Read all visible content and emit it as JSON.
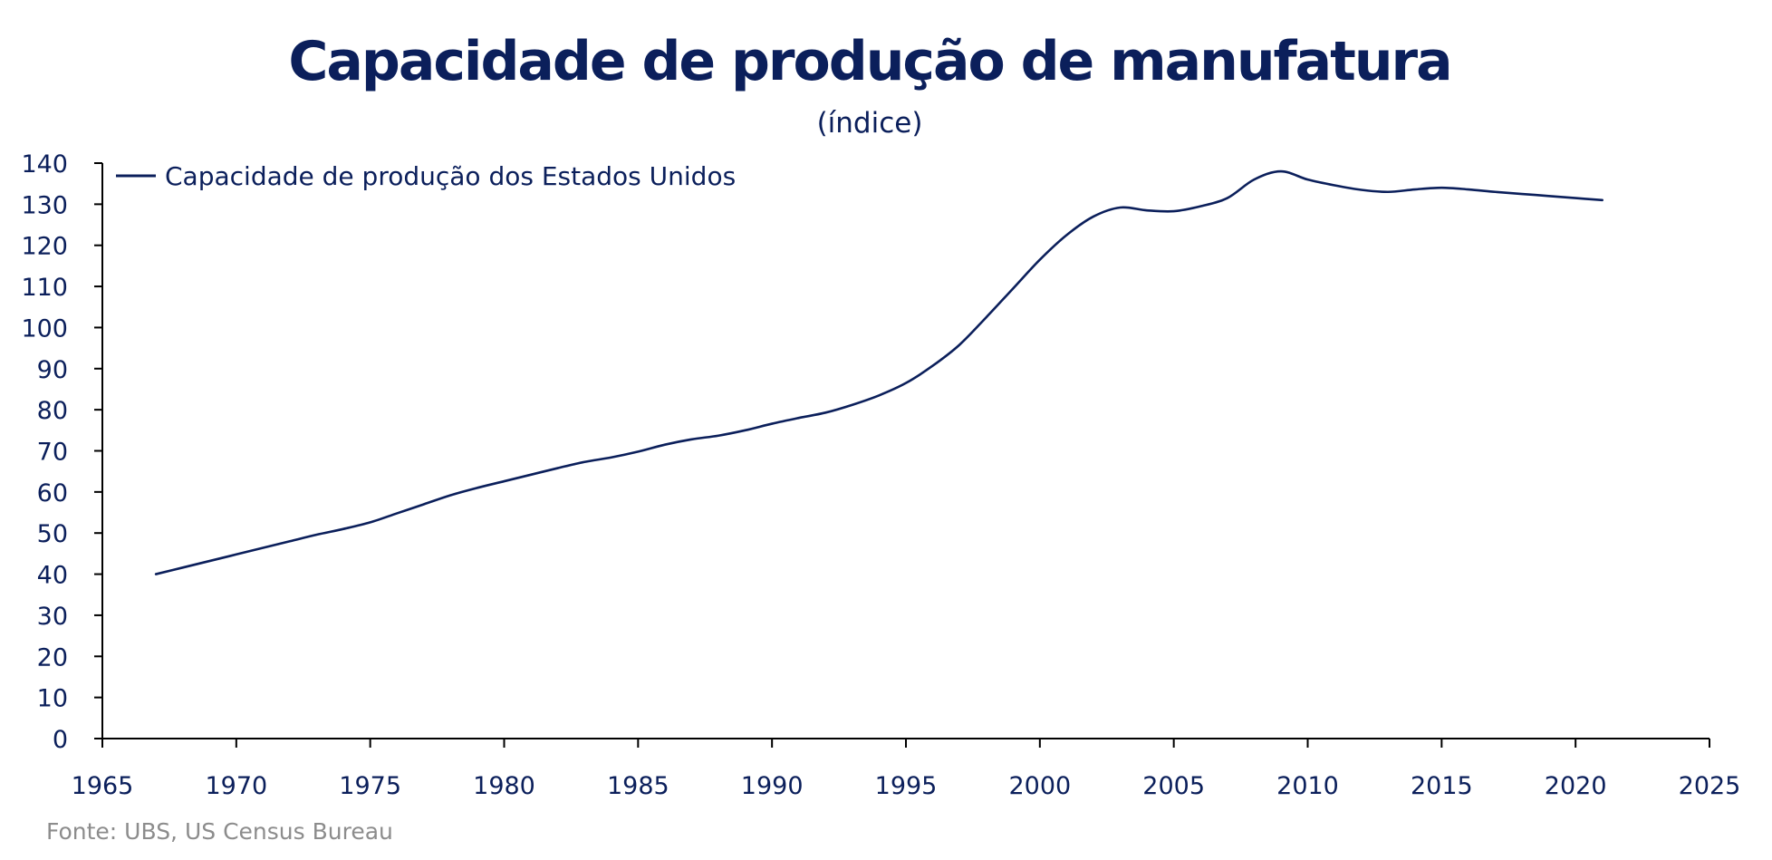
{
  "colors": {
    "primary": "#0b1f5b",
    "source": "#8c8c8c",
    "background": "#ffffff"
  },
  "chart_data": {
    "type": "line",
    "title": "Capacidade de produção de manufatura",
    "subtitle": "(índice)",
    "xlabel": "",
    "ylabel": "",
    "xlim": [
      1965,
      2025
    ],
    "ylim": [
      0,
      140
    ],
    "x_ticks": [
      1965,
      1970,
      1975,
      1980,
      1985,
      1990,
      1995,
      2000,
      2005,
      2010,
      2015,
      2020,
      2025
    ],
    "y_ticks": [
      0,
      10,
      20,
      30,
      40,
      50,
      60,
      70,
      80,
      90,
      100,
      110,
      120,
      130,
      140
    ],
    "grid": false,
    "legend_position": "top-left",
    "series": [
      {
        "name": "Capacidade de produção dos Estados Unidos",
        "x": [
          1967,
          1968,
          1969,
          1970,
          1971,
          1972,
          1973,
          1974,
          1975,
          1976,
          1977,
          1978,
          1979,
          1980,
          1981,
          1982,
          1983,
          1984,
          1985,
          1986,
          1987,
          1988,
          1989,
          1990,
          1991,
          1992,
          1993,
          1994,
          1995,
          1996,
          1997,
          1998,
          1999,
          2000,
          2001,
          2002,
          2003,
          2004,
          2005,
          2006,
          2007,
          2008,
          2009,
          2010,
          2011,
          2012,
          2013,
          2014,
          2015,
          2016,
          2017,
          2018,
          2019,
          2020,
          2021
        ],
        "values": [
          40,
          41.6,
          43.2,
          44.8,
          46.4,
          48,
          49.6,
          51,
          52.6,
          54.8,
          57,
          59.2,
          61,
          62.6,
          64.2,
          65.8,
          67.3,
          68.4,
          69.8,
          71.5,
          72.8,
          73.7,
          75,
          76.6,
          78,
          79.3,
          81.2,
          83.5,
          86.5,
          90.7,
          95.8,
          102.5,
          109.5,
          116.5,
          122.5,
          127,
          129.2,
          128.5,
          128.3,
          129.5,
          131.5,
          136,
          138,
          136,
          134.6,
          133.5,
          133,
          133.6,
          134,
          133.6,
          133,
          132.5,
          132,
          131.5,
          131
        ]
      }
    ]
  },
  "source": "Fonte: UBS, US Census Bureau"
}
